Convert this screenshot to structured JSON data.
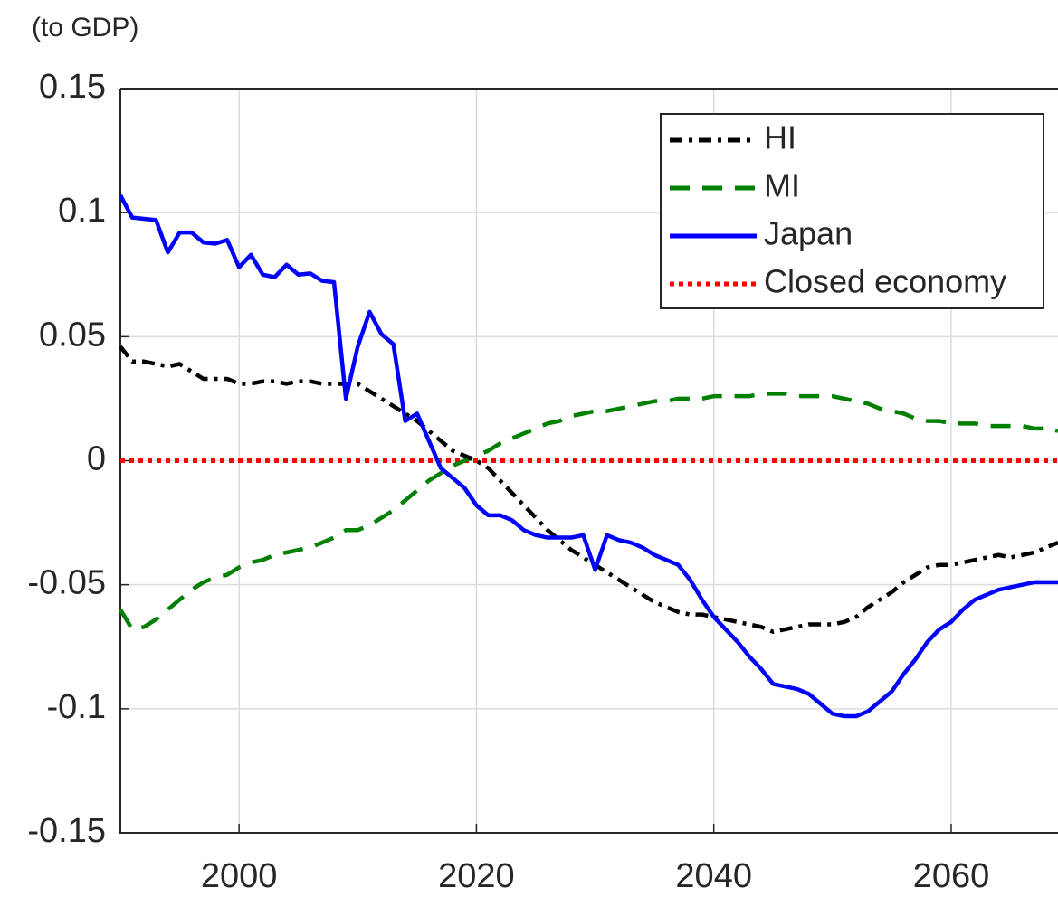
{
  "chart_data": {
    "type": "line",
    "ylabel": "(to GDP)",
    "x": [
      1990,
      1991,
      1992,
      1993,
      1994,
      1995,
      1996,
      1997,
      1998,
      1999,
      2000,
      2001,
      2002,
      2003,
      2004,
      2005,
      2006,
      2007,
      2008,
      2009,
      2010,
      2011,
      2012,
      2013,
      2014,
      2015,
      2016,
      2017,
      2018,
      2019,
      2020,
      2021,
      2022,
      2023,
      2024,
      2025,
      2026,
      2027,
      2028,
      2029,
      2030,
      2031,
      2032,
      2033,
      2034,
      2035,
      2036,
      2037,
      2038,
      2039,
      2040,
      2041,
      2042,
      2043,
      2044,
      2045,
      2046,
      2047,
      2048,
      2049,
      2050,
      2051,
      2052,
      2053,
      2054,
      2055,
      2056,
      2057,
      2058,
      2059,
      2060,
      2061,
      2062,
      2063,
      2064,
      2065,
      2066,
      2067,
      2068,
      2069
    ],
    "series": [
      {
        "name": "HI",
        "color": "#000000",
        "style": "dashdot",
        "values": [
          0.046,
          0.04,
          0.04,
          0.039,
          0.038,
          0.039,
          0.036,
          0.033,
          0.033,
          0.033,
          0.031,
          0.031,
          0.032,
          0.032,
          0.031,
          0.032,
          0.032,
          0.031,
          0.031,
          0.031,
          0.031,
          0.028,
          0.025,
          0.022,
          0.019,
          0.016,
          0.012,
          0.008,
          0.004,
          0.002,
          0.0,
          -0.003,
          -0.008,
          -0.013,
          -0.018,
          -0.023,
          -0.028,
          -0.032,
          -0.036,
          -0.039,
          -0.042,
          -0.045,
          -0.048,
          -0.051,
          -0.054,
          -0.057,
          -0.059,
          -0.061,
          -0.062,
          -0.062,
          -0.063,
          -0.064,
          -0.065,
          -0.066,
          -0.067,
          -0.069,
          -0.068,
          -0.067,
          -0.066,
          -0.066,
          -0.066,
          -0.065,
          -0.063,
          -0.059,
          -0.056,
          -0.053,
          -0.049,
          -0.046,
          -0.043,
          -0.042,
          -0.042,
          -0.041,
          -0.04,
          -0.039,
          -0.038,
          -0.039,
          -0.038,
          -0.037,
          -0.035,
          -0.033
        ]
      },
      {
        "name": "MI",
        "color": "#008000",
        "style": "dashed",
        "values": [
          -0.06,
          -0.068,
          -0.067,
          -0.064,
          -0.06,
          -0.056,
          -0.052,
          -0.049,
          -0.047,
          -0.046,
          -0.043,
          -0.041,
          -0.04,
          -0.038,
          -0.037,
          -0.036,
          -0.035,
          -0.033,
          -0.031,
          -0.028,
          -0.028,
          -0.026,
          -0.023,
          -0.02,
          -0.016,
          -0.012,
          -0.008,
          -0.005,
          -0.002,
          0.0,
          0.002,
          0.004,
          0.007,
          0.009,
          0.011,
          0.013,
          0.015,
          0.016,
          0.018,
          0.019,
          0.02,
          0.02,
          0.021,
          0.022,
          0.023,
          0.024,
          0.024,
          0.025,
          0.025,
          0.025,
          0.026,
          0.026,
          0.026,
          0.026,
          0.027,
          0.027,
          0.027,
          0.026,
          0.026,
          0.026,
          0.026,
          0.025,
          0.024,
          0.023,
          0.021,
          0.02,
          0.019,
          0.017,
          0.016,
          0.016,
          0.015,
          0.015,
          0.015,
          0.014,
          0.014,
          0.014,
          0.014,
          0.013,
          0.013,
          0.012
        ]
      },
      {
        "name": "Japan",
        "color": "#0000ff",
        "style": "solid",
        "values": [
          0.107,
          0.098,
          0.0975,
          0.097,
          0.084,
          0.092,
          0.092,
          0.088,
          0.0875,
          0.089,
          0.078,
          0.083,
          0.075,
          0.074,
          0.079,
          0.075,
          0.0755,
          0.0725,
          0.072,
          0.025,
          0.046,
          0.06,
          0.051,
          0.047,
          0.016,
          0.019,
          0.008,
          -0.003,
          -0.007,
          -0.011,
          -0.018,
          -0.022,
          -0.022,
          -0.024,
          -0.028,
          -0.03,
          -0.031,
          -0.031,
          -0.031,
          -0.03,
          -0.044,
          -0.03,
          -0.032,
          -0.033,
          -0.035,
          -0.038,
          -0.04,
          -0.042,
          -0.048,
          -0.056,
          -0.063,
          -0.068,
          -0.073,
          -0.079,
          -0.084,
          -0.09,
          -0.091,
          -0.092,
          -0.094,
          -0.098,
          -0.102,
          -0.103,
          -0.103,
          -0.101,
          -0.097,
          -0.093,
          -0.086,
          -0.08,
          -0.073,
          -0.068,
          -0.065,
          -0.06,
          -0.056,
          -0.054,
          -0.052,
          -0.051,
          -0.05,
          -0.049,
          -0.049,
          -0.049
        ]
      },
      {
        "name": "Closed economy",
        "color": "#ff0000",
        "style": "dotted",
        "values": [
          0,
          0,
          0,
          0,
          0,
          0,
          0,
          0,
          0,
          0,
          0,
          0,
          0,
          0,
          0,
          0,
          0,
          0,
          0,
          0,
          0,
          0,
          0,
          0,
          0,
          0,
          0,
          0,
          0,
          0,
          0,
          0,
          0,
          0,
          0,
          0,
          0,
          0,
          0,
          0,
          0,
          0,
          0,
          0,
          0,
          0,
          0,
          0,
          0,
          0,
          0,
          0,
          0,
          0,
          0,
          0,
          0,
          0,
          0,
          0,
          0,
          0,
          0,
          0,
          0,
          0,
          0,
          0,
          0,
          0,
          0,
          0,
          0,
          0,
          0,
          0,
          0,
          0,
          0,
          0
        ]
      }
    ],
    "xlim": [
      1990,
      2069
    ],
    "xticks": [
      2000,
      2020,
      2040,
      2060
    ],
    "ylim": [
      -0.15,
      0.15
    ],
    "yticks": [
      -0.15,
      -0.1,
      -0.05,
      0,
      0.05,
      0.1,
      0.15
    ],
    "grid": true,
    "legend": "upper right"
  }
}
